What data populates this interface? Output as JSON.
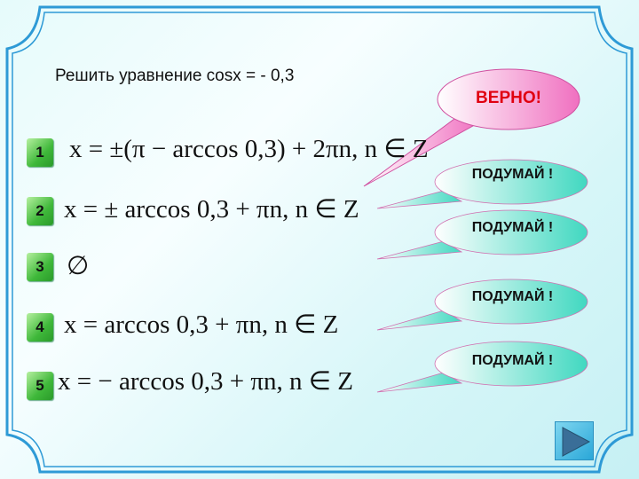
{
  "task": "Решить уравнение cosx = - 0,3",
  "options": [
    {
      "num": "1",
      "formula": "x = ±(π − arccos 0,3) + 2πn, n ∈ Z"
    },
    {
      "num": "2",
      "formula": "x = ± arccos 0,3 + πn, n ∈ Z"
    },
    {
      "num": "3",
      "formula": "∅"
    },
    {
      "num": "4",
      "formula": "x = arccos 0,3 + πn, n ∈ Z"
    },
    {
      "num": "5",
      "formula": "x = − arccos 0,3 + πn, n ∈ Z"
    }
  ],
  "bubbles": {
    "correct": "ВЕРНО!",
    "think": "ПОДУМАЙ !"
  },
  "next_icon": "play-triangle-icon",
  "colors": {
    "correct_bubble": "#f070c0",
    "think_bubble": "#40d8c0",
    "frame": "#3aa0d8",
    "number_box": "#3fb83a"
  }
}
